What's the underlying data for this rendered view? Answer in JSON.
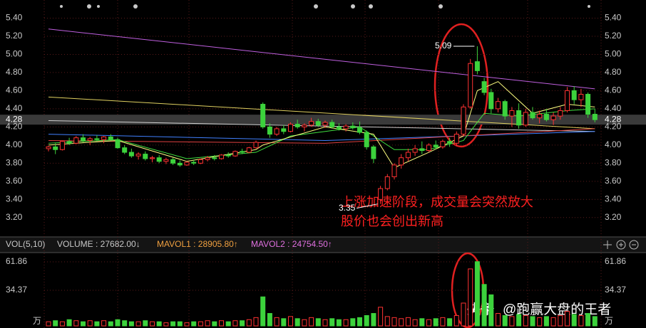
{
  "chart_data": {
    "type": "candlestick",
    "up_color": "#ff3232",
    "down_color": "#3cd23c",
    "ylim": [
      3.01,
      5.6
    ],
    "yticks": [
      {
        "value": 3.2,
        "label": "3.20"
      },
      {
        "value": 3.4,
        "label": "3.40"
      },
      {
        "value": 3.6,
        "label": "3.60"
      },
      {
        "value": 3.8,
        "label": "3.80"
      },
      {
        "value": 4.0,
        "label": "4.00"
      },
      {
        "value": 4.2,
        "label": "4.20"
      },
      {
        "value": 4.4,
        "label": "4.40"
      },
      {
        "value": 4.6,
        "label": "4.60"
      },
      {
        "value": 4.8,
        "label": "4.80"
      },
      {
        "value": 5.0,
        "label": "5.00"
      },
      {
        "value": 5.2,
        "label": "5.20"
      },
      {
        "value": 5.4,
        "label": "5.40"
      }
    ],
    "current_price": {
      "value": 4.28,
      "label": "4.28"
    },
    "grid": true,
    "ohlc": [
      [
        3.96,
        3.99,
        3.93,
        3.98
      ],
      [
        3.98,
        4.02,
        3.9,
        3.95
      ],
      [
        3.95,
        4.05,
        3.94,
        4.04
      ],
      [
        4.04,
        4.08,
        4.0,
        4.02
      ],
      [
        4.02,
        4.1,
        4.01,
        4.08
      ],
      [
        4.08,
        4.12,
        4.03,
        4.05
      ],
      [
        4.05,
        4.09,
        4.0,
        4.07
      ],
      [
        4.07,
        4.11,
        4.04,
        4.06
      ],
      [
        4.06,
        4.1,
        4.02,
        4.09
      ],
      [
        4.09,
        4.12,
        4.05,
        4.06
      ],
      [
        4.06,
        4.08,
        3.96,
        3.97
      ],
      [
        3.97,
        4.0,
        3.9,
        3.92
      ],
      [
        3.92,
        3.96,
        3.86,
        3.88
      ],
      [
        3.88,
        3.92,
        3.84,
        3.9
      ],
      [
        3.9,
        3.93,
        3.83,
        3.85
      ],
      [
        3.85,
        3.88,
        3.81,
        3.86
      ],
      [
        3.86,
        3.89,
        3.8,
        3.82
      ],
      [
        3.82,
        3.86,
        3.79,
        3.84
      ],
      [
        3.84,
        3.86,
        3.78,
        3.8
      ],
      [
        3.8,
        3.83,
        3.76,
        3.78
      ],
      [
        3.78,
        3.82,
        3.77,
        3.81
      ],
      [
        3.81,
        3.84,
        3.78,
        3.8
      ],
      [
        3.8,
        3.85,
        3.79,
        3.84
      ],
      [
        3.84,
        3.88,
        3.82,
        3.86
      ],
      [
        3.86,
        3.89,
        3.83,
        3.85
      ],
      [
        3.85,
        3.9,
        3.84,
        3.89
      ],
      [
        3.89,
        3.92,
        3.86,
        3.88
      ],
      [
        3.88,
        3.94,
        3.87,
        3.93
      ],
      [
        3.93,
        3.96,
        3.9,
        3.92
      ],
      [
        3.92,
        3.98,
        3.91,
        3.97
      ],
      [
        3.97,
        4.05,
        3.96,
        4.03
      ],
      [
        4.45,
        4.47,
        4.18,
        4.2
      ],
      [
        4.2,
        4.24,
        4.08,
        4.12
      ],
      [
        4.12,
        4.2,
        4.1,
        4.18
      ],
      [
        4.18,
        4.22,
        4.12,
        4.15
      ],
      [
        4.15,
        4.25,
        4.14,
        4.23
      ],
      [
        4.23,
        4.28,
        4.18,
        4.2
      ],
      [
        4.2,
        4.24,
        4.15,
        4.22
      ],
      [
        4.22,
        4.3,
        4.2,
        4.26
      ],
      [
        4.26,
        4.29,
        4.2,
        4.22
      ],
      [
        4.22,
        4.27,
        4.19,
        4.25
      ],
      [
        4.25,
        4.28,
        4.18,
        4.2
      ],
      [
        4.2,
        4.24,
        4.16,
        4.18
      ],
      [
        4.18,
        4.23,
        4.15,
        4.21
      ],
      [
        4.21,
        4.25,
        4.17,
        4.19
      ],
      [
        4.19,
        4.26,
        4.12,
        4.14
      ],
      [
        4.14,
        4.16,
        3.95,
        3.98
      ],
      [
        3.98,
        4.0,
        3.8,
        3.85
      ],
      [
        3.4,
        3.55,
        3.35,
        3.52
      ],
      [
        3.52,
        3.68,
        3.5,
        3.65
      ],
      [
        3.65,
        3.8,
        3.62,
        3.78
      ],
      [
        3.78,
        3.9,
        3.74,
        3.86
      ],
      [
        3.86,
        3.96,
        3.82,
        3.92
      ],
      [
        3.92,
        4.0,
        3.88,
        3.96
      ],
      [
        3.96,
        4.04,
        3.9,
        3.94
      ],
      [
        3.94,
        4.02,
        3.92,
        4.0
      ],
      [
        4.0,
        4.05,
        3.95,
        3.98
      ],
      [
        3.98,
        4.06,
        3.96,
        4.04
      ],
      [
        4.04,
        4.08,
        3.98,
        4.02
      ],
      [
        4.02,
        4.15,
        3.99,
        4.12
      ],
      [
        4.12,
        4.45,
        4.1,
        4.42
      ],
      [
        4.42,
        4.95,
        4.4,
        4.9
      ],
      [
        4.92,
        5.09,
        4.78,
        4.82
      ],
      [
        4.7,
        4.74,
        4.55,
        4.58
      ],
      [
        4.58,
        4.62,
        4.35,
        4.4
      ],
      [
        4.4,
        4.52,
        4.36,
        4.48
      ],
      [
        4.48,
        4.5,
        4.28,
        4.32
      ],
      [
        4.32,
        4.42,
        4.2,
        4.38
      ],
      [
        4.38,
        4.46,
        4.18,
        4.22
      ],
      [
        4.22,
        4.4,
        4.2,
        4.36
      ],
      [
        4.36,
        4.42,
        4.28,
        4.3
      ],
      [
        4.3,
        4.38,
        4.24,
        4.34
      ],
      [
        4.34,
        4.4,
        4.26,
        4.28
      ],
      [
        4.28,
        4.36,
        4.22,
        4.32
      ],
      [
        4.32,
        4.42,
        4.28,
        4.38
      ],
      [
        4.38,
        4.64,
        4.36,
        4.6
      ],
      [
        4.6,
        4.65,
        4.45,
        4.5
      ],
      [
        4.5,
        4.62,
        4.42,
        4.56
      ],
      [
        4.56,
        4.58,
        4.3,
        4.34
      ],
      [
        4.34,
        4.4,
        4.25,
        4.28
      ]
    ],
    "lines": [
      {
        "color": "#c060e0",
        "x": [
          0,
          79
        ],
        "values": [
          5.28,
          4.62
        ]
      },
      {
        "color": "#e0d060",
        "x": [
          0,
          79
        ],
        "values": [
          4.53,
          4.18
        ]
      },
      {
        "color": "#d0d0d0",
        "x": [
          0,
          79
        ],
        "values": [
          4.27,
          4.15
        ]
      },
      {
        "color": "#4080ff",
        "x": [
          0,
          40,
          79
        ],
        "values": [
          4.12,
          4.05,
          4.15
        ]
      },
      {
        "color": "#e04040",
        "x": [
          0,
          40,
          79
        ],
        "values": [
          4.05,
          4.02,
          4.18
        ]
      },
      {
        "color": "#40e040",
        "x": [
          0,
          10,
          20,
          30,
          35,
          45,
          50,
          55,
          60,
          63,
          68,
          75,
          79
        ],
        "values": [
          4.02,
          4.06,
          3.85,
          3.92,
          4.1,
          4.2,
          3.95,
          3.95,
          4.05,
          4.35,
          4.32,
          4.38,
          4.4
        ]
      },
      {
        "color": "#ffff80",
        "x": [
          0,
          10,
          20,
          30,
          31,
          40,
          47,
          50,
          55,
          60,
          62,
          65,
          70,
          75,
          79
        ],
        "values": [
          4.0,
          4.05,
          3.82,
          3.95,
          4.0,
          4.2,
          4.12,
          3.75,
          3.92,
          4.1,
          4.6,
          4.7,
          4.35,
          4.45,
          4.42
        ]
      }
    ],
    "annotations": {
      "high": {
        "value": 5.09,
        "label": "5.09"
      },
      "low": {
        "value": 3.35,
        "label": "3.35"
      },
      "note_line1": "上涨加速阶段，成交量会突然放大",
      "note_line2": "股价也会创出新高"
    },
    "volume": {
      "header": {
        "title": "VOL(5,10)",
        "volume": "VOLUME : 27682.00↓",
        "mavol1": "MAVOL1 : 28905.80↑",
        "mavol2": "MAVOL2 : 24754.50↑"
      },
      "ylim": [
        0,
        68.7
      ],
      "yticks": [
        34.37,
        61.86
      ],
      "unit": "万",
      "values": [
        4,
        5,
        4,
        6,
        5,
        4,
        5,
        4,
        5,
        4,
        6,
        5,
        4,
        4,
        5,
        4,
        4,
        3,
        4,
        4,
        3,
        4,
        4,
        5,
        4,
        5,
        4,
        5,
        5,
        6,
        8,
        28,
        12,
        8,
        7,
        9,
        7,
        6,
        8,
        7,
        6,
        7,
        6,
        6,
        7,
        8,
        10,
        12,
        18,
        9,
        8,
        7,
        8,
        6,
        7,
        6,
        7,
        8,
        7,
        10,
        22,
        55,
        62,
        40,
        30,
        12,
        10,
        9,
        11,
        10,
        9,
        8,
        9,
        8,
        10,
        14,
        11,
        10,
        12,
        9
      ]
    },
    "watermark": {
      "source": "头条",
      "author": "@跑赢大盘的王者"
    }
  }
}
